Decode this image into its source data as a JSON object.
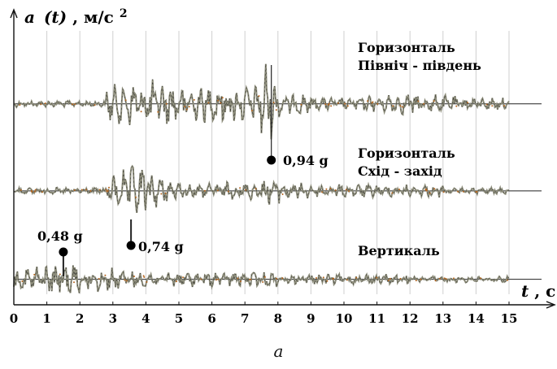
{
  "chart_data": {
    "type": "line",
    "y_axis_label": {
      "main": "a",
      "arg": "(t)",
      "units": ", м/с",
      "sup": "2"
    },
    "x_axis_label": {
      "main": "t",
      "units": ", с"
    },
    "x_ticks": [
      "0",
      "1",
      "2",
      "3",
      "4",
      "5",
      "6",
      "7",
      "8",
      "9",
      "10",
      "11",
      "12",
      "13",
      "14",
      "15"
    ],
    "xlim": [
      0,
      15
    ],
    "grid": true,
    "series": [
      {
        "name": "Горизонталь Північ - південь",
        "label_lines": [
          "Горизонталь",
          "Північ - південь"
        ],
        "baseline_level": 0.75
      },
      {
        "name": "Горизонталь Схід - захід",
        "label_lines": [
          "Горизонталь",
          "Схід - захід"
        ],
        "baseline_level": 0.425
      },
      {
        "name": "Вертикаль",
        "label_lines": [
          "Вертикаль"
        ],
        "baseline_level": 0.095
      }
    ],
    "annotations": [
      {
        "text": "0,94 g",
        "x": 7.8,
        "series": "Горизонталь Північ - південь"
      },
      {
        "text": "0,74 g",
        "x": 3.55,
        "series": "Горизонталь Схід - захід"
      },
      {
        "text": "0,48 g",
        "x": 1.5,
        "series": "Вертикаль"
      }
    ],
    "colors": {
      "trace": "#8c8c7a",
      "trace_dark": "#222222",
      "noise_accent": "#b5651d",
      "grid": "#cfcfcf",
      "axis": "#111111"
    }
  },
  "caption": "а"
}
